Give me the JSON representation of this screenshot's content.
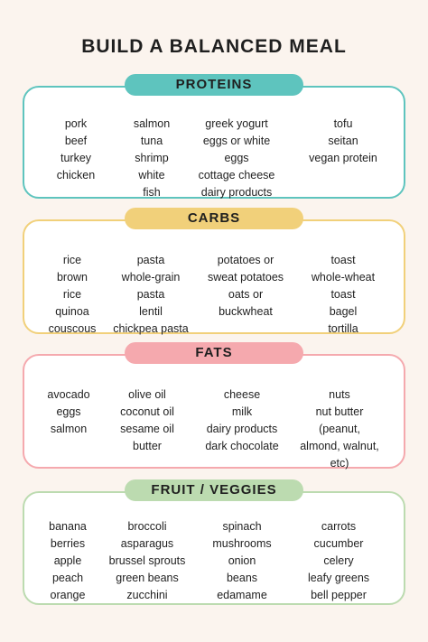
{
  "title": "BUILD A BALANCED MEAL",
  "colors": {
    "proteins": "#5ec4be",
    "carbs": "#f1d07a",
    "fats": "#f5a9ae",
    "fruit_veggies": "#bcdbb0"
  },
  "sections": [
    {
      "heading": "PROTEINS",
      "columns": [
        [
          "pork",
          "beef",
          "turkey",
          "chicken"
        ],
        [
          "salmon",
          "tuna",
          "shrimp",
          "white",
          "fish"
        ],
        [
          "greek yogurt",
          "eggs or white",
          "eggs",
          "cottage cheese",
          "dairy products"
        ],
        [
          "tofu",
          "seitan",
          "vegan protein"
        ]
      ]
    },
    {
      "heading": "CARBS",
      "columns": [
        [
          "rice",
          "brown",
          "rice",
          "quinoa",
          "couscous"
        ],
        [
          "pasta",
          "whole-grain",
          "pasta",
          "lentil",
          "chickpea pasta"
        ],
        [
          "potatoes or",
          "sweat potatoes",
          "oats or",
          "buckwheat"
        ],
        [
          "toast",
          "whole-wheat",
          "toast",
          "bagel",
          "tortilla"
        ]
      ]
    },
    {
      "heading": "FATS",
      "columns": [
        [
          "avocado",
          "eggs",
          "salmon"
        ],
        [
          "olive oil",
          "coconut oil",
          "sesame oil",
          "butter"
        ],
        [
          "cheese",
          "milk",
          "dairy products",
          "dark chocolate"
        ],
        [
          "nuts",
          "nut butter",
          "(peanut,",
          "almond, walnut,",
          "etc)"
        ]
      ]
    },
    {
      "heading": "FRUIT / VEGGIES",
      "columns": [
        [
          "banana",
          "berries",
          "apple",
          "peach",
          "orange"
        ],
        [
          "broccoli",
          "asparagus",
          "brussel sprouts",
          "green beans",
          "zucchini"
        ],
        [
          "spinach",
          "mushrooms",
          "onion",
          "beans",
          "edamame"
        ],
        [
          "carrots",
          "cucumber",
          "celery",
          "leafy greens",
          "bell pepper"
        ]
      ]
    }
  ]
}
